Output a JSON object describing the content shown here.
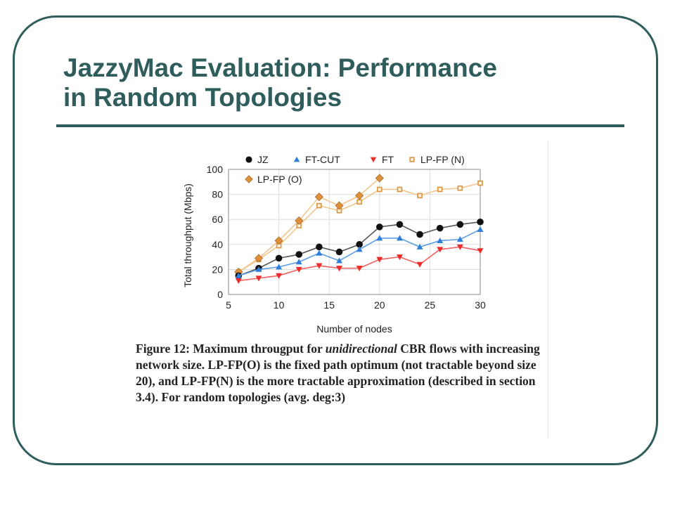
{
  "slide": {
    "title_line1": "JazzyMac Evaluation: Performance",
    "title_line2": "in Random Topologies",
    "theme_color": "#2f5d5b"
  },
  "caption": {
    "part1": "Figure 12:  Maximum througput for ",
    "italic": "unidirectional",
    "part2": " CBR flows with increasing network size. LP-FP(O) is the fixed path optimum (not tractable beyond size 20), and LP-FP(N) is the more tractable approximation (described in section 3.4). For random topologies (avg. deg:3)"
  },
  "chart_data": {
    "type": "line",
    "xlabel": "Number of nodes",
    "ylabel": "Total throughput (Mbps)",
    "xlim": [
      5,
      30
    ],
    "ylim": [
      0,
      100
    ],
    "xticks": [
      5,
      10,
      15,
      20,
      25,
      30
    ],
    "yticks": [
      0,
      20,
      40,
      60,
      80,
      100
    ],
    "grid": true,
    "legend_position": "top",
    "series": [
      {
        "name": "JZ",
        "marker": "circle",
        "color": "#111111",
        "line_color": "#555555",
        "x": [
          6,
          8,
          10,
          12,
          14,
          16,
          18,
          20,
          22,
          24,
          26,
          28,
          30
        ],
        "y": [
          15,
          21,
          29,
          32,
          38,
          34,
          40,
          54,
          56,
          48,
          53,
          56,
          58
        ]
      },
      {
        "name": "FT-CUT",
        "marker": "triangle-up",
        "color": "#2f7fd9",
        "line_color": "#5b9ee6",
        "x": [
          6,
          8,
          10,
          12,
          14,
          16,
          18,
          20,
          22,
          24,
          26,
          28,
          30
        ],
        "y": [
          15,
          20,
          22,
          26,
          33,
          27,
          36,
          45,
          45,
          38,
          43,
          44,
          52
        ]
      },
      {
        "name": "FT",
        "marker": "triangle-down",
        "color": "#ee2b2b",
        "line_color": "#f0605e",
        "x": [
          6,
          8,
          10,
          12,
          14,
          16,
          18,
          20,
          22,
          24,
          26,
          28,
          30
        ],
        "y": [
          11,
          13,
          15,
          20,
          23,
          21,
          21,
          28,
          30,
          24,
          36,
          38,
          35
        ]
      },
      {
        "name": "LP-FP (N)",
        "marker": "square",
        "color": "#d9943f",
        "line_color": "#f3c58d",
        "x": [
          6,
          8,
          10,
          12,
          14,
          16,
          18,
          20,
          22,
          24,
          26,
          28,
          30
        ],
        "y": [
          18,
          28,
          39,
          55,
          71,
          67,
          74,
          84,
          84,
          79,
          84,
          85,
          89
        ]
      },
      {
        "name": "LP-FP (O)",
        "marker": "diamond",
        "color": "#e0903a",
        "line_color": "#f3c58d",
        "x": [
          6,
          8,
          10,
          12,
          14,
          16,
          18,
          20
        ],
        "y": [
          18,
          29,
          43,
          59,
          78,
          71,
          79,
          93
        ]
      }
    ]
  }
}
